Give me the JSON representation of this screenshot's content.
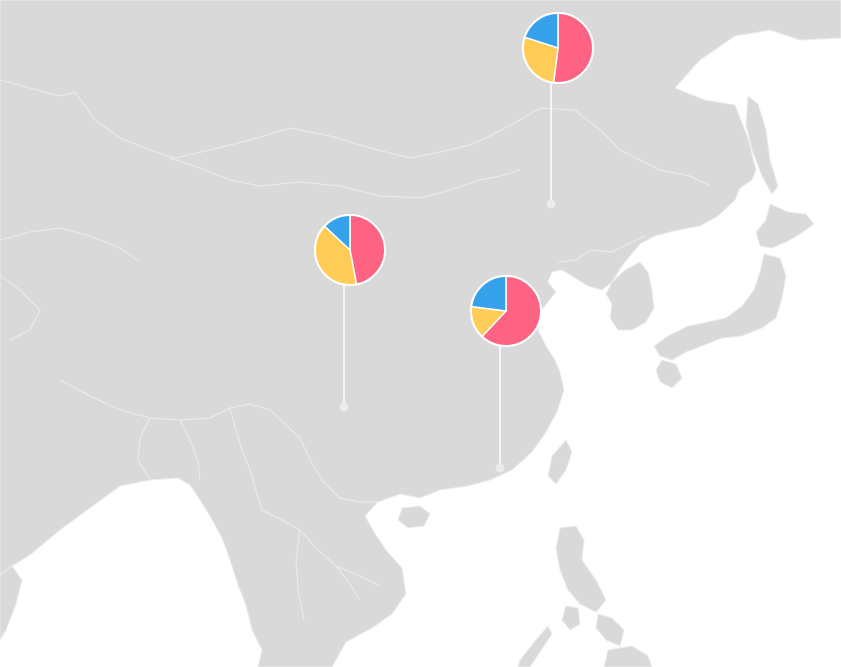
{
  "map": {
    "land_color": "#d9d9d9",
    "border_color": "#ececec",
    "background_color": "#ffffff"
  },
  "series_colors": [
    "#ff6384",
    "#ffcd56",
    "#36a2eb"
  ],
  "chart_data": {
    "type": "pie",
    "pies": [
      {
        "values": [
          52,
          28,
          20
        ]
      },
      {
        "values": [
          47,
          40,
          13
        ]
      },
      {
        "values": [
          62,
          15,
          23
        ]
      }
    ]
  }
}
